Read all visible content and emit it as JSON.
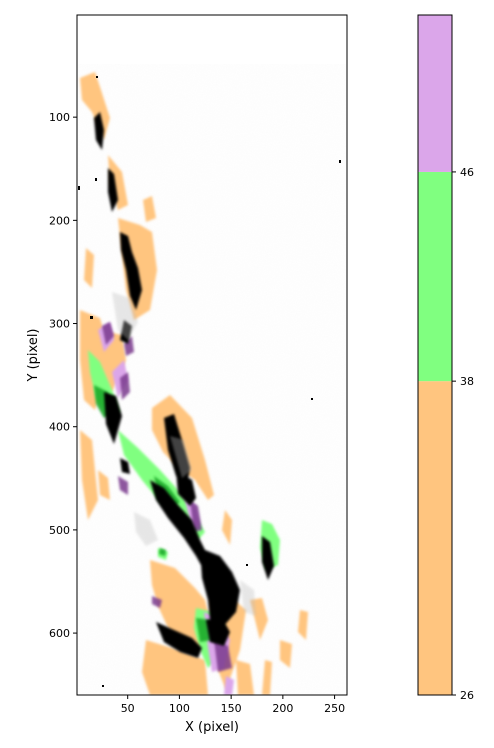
{
  "chart_data": {
    "type": "heatmap",
    "title": "",
    "xlabel": "X (pixel)",
    "ylabel": "Y (pixel)",
    "xlim": [
      1,
      262
    ],
    "ylim": [
      660,
      1
    ],
    "x_ticks": [
      50,
      100,
      150,
      200,
      250
    ],
    "y_ticks": [
      100,
      200,
      300,
      400,
      500,
      600
    ],
    "background_image": "grayscale intensity map, black = bright emission",
    "colorbar": {
      "orientation": "vertical",
      "boundaries": [
        26,
        38,
        46,
        52
      ],
      "tick_labels": [
        "26",
        "38",
        "46"
      ],
      "colors": [
        "#ffc57f",
        "#80ff80",
        "#dba6ea"
      ]
    },
    "overlay_regions": [
      {
        "bin": "26-38",
        "color": "#ffc57f",
        "area": "outer envelope of the filament, x 5-190, y 60-660"
      },
      {
        "bin": "38-46",
        "color": "#80ff80",
        "area": "central filament x 15-135, y 330-660; blob near x 185, y 500-560"
      },
      {
        "bin": "46-52",
        "color": "#dba6ea",
        "area": "small patches along filament near x 30-45, y 320-400 and x 120-150, y 620-660"
      }
    ]
  }
}
